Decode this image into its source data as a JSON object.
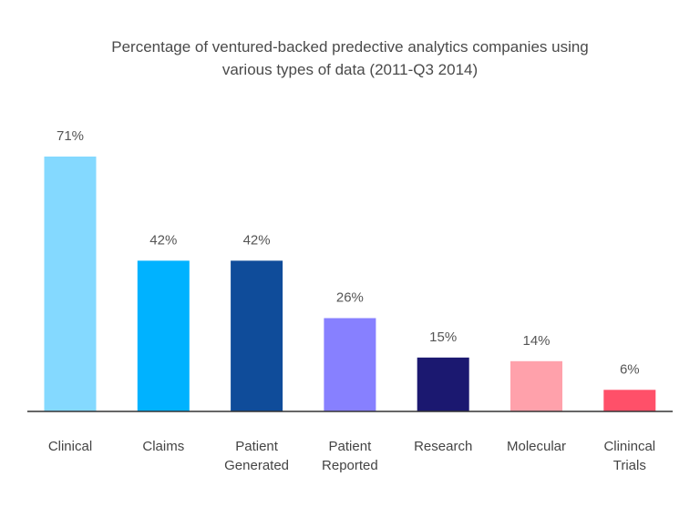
{
  "chart_data": {
    "type": "bar",
    "title_lines": [
      "Percentage of ventured-backed predective analytics companies using",
      "various types of data (2011-Q3 2014)"
    ],
    "categories": [
      [
        "Clinical"
      ],
      [
        "Claims"
      ],
      [
        "Patient",
        "Generated"
      ],
      [
        "Patient",
        "Reported"
      ],
      [
        "Research"
      ],
      [
        "Molecular"
      ],
      [
        "Clinincal",
        "Trials"
      ]
    ],
    "values": [
      71,
      42,
      42,
      26,
      15,
      14,
      6
    ],
    "value_labels": [
      "71%",
      "42%",
      "42%",
      "26%",
      "15%",
      "14%",
      "6%"
    ],
    "colors": [
      "#84d9ff",
      "#00b2ff",
      "#0f4c9a",
      "#8780ff",
      "#1b1870",
      "#ffa1ab",
      "#ff5069"
    ],
    "ylim": [
      0,
      71
    ],
    "axis_color": "#333333",
    "xlabel": "",
    "ylabel": ""
  }
}
